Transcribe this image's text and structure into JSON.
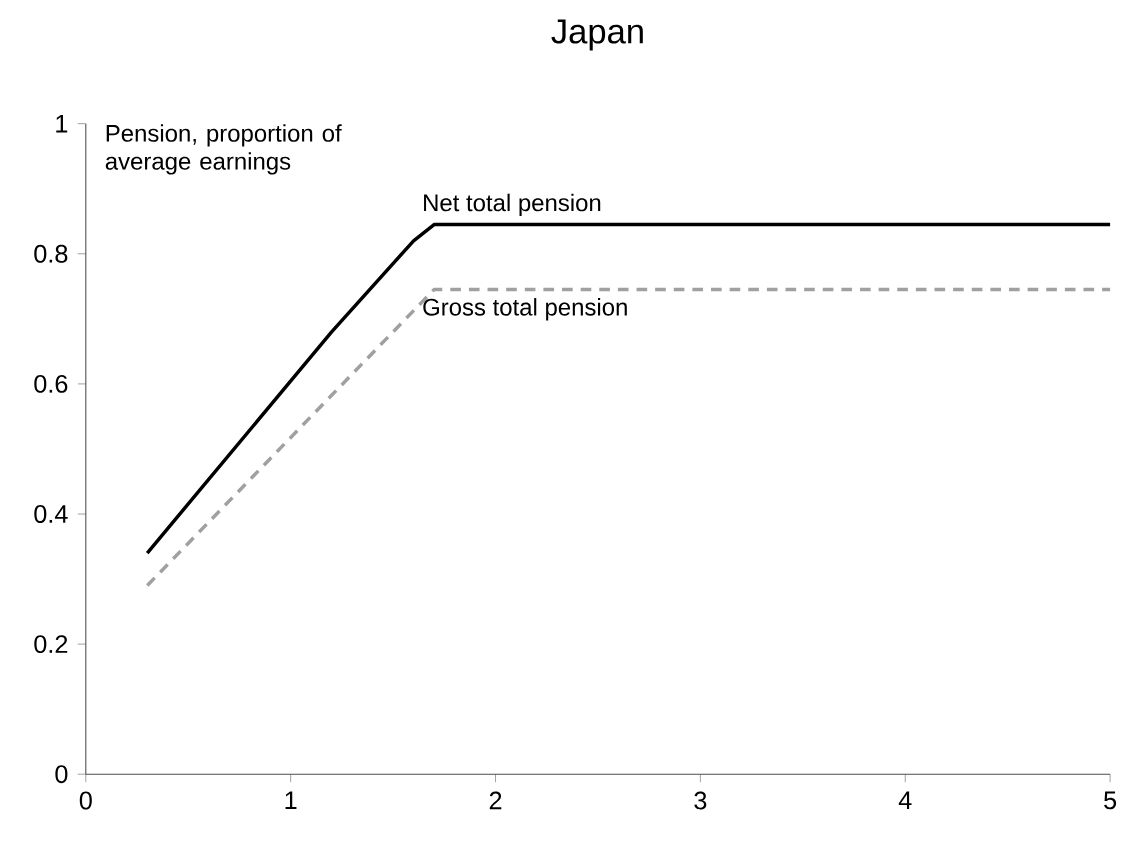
{
  "chart_data": {
    "type": "line",
    "title": "Japan",
    "ylabel": "Pension, proportion of average earnings",
    "xlim": [
      0,
      5
    ],
    "ylim": [
      0,
      1
    ],
    "xticks": [
      0,
      1,
      2,
      3,
      4,
      5
    ],
    "yticks": [
      0,
      0.2,
      0.4,
      0.6,
      0.8,
      1
    ],
    "series": [
      {
        "name": "Net total pension",
        "color": "#000000",
        "line_style": "solid",
        "x": [
          0.3,
          1.2,
          1.6,
          1.7,
          5
        ],
        "values": [
          0.34,
          0.68,
          0.82,
          0.845,
          0.845
        ]
      },
      {
        "name": "Gross total pension",
        "color": "#a0a0a0",
        "line_style": "dashed",
        "x": [
          0.3,
          1.7,
          5
        ],
        "values": [
          0.29,
          0.745,
          0.745
        ]
      }
    ]
  }
}
